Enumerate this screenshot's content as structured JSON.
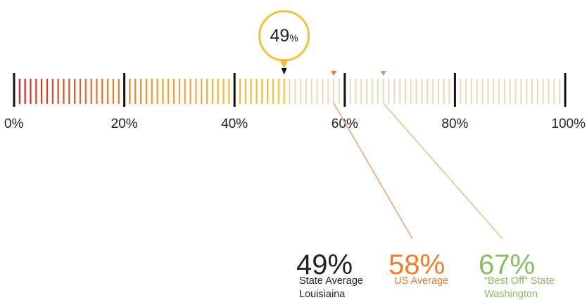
{
  "chart_data": {
    "type": "gauge",
    "title": "",
    "axis": {
      "min": 0,
      "max": 100,
      "unit": "%",
      "tick_values": [
        0,
        20,
        40,
        60,
        80,
        100
      ],
      "tick_labels": [
        "0%",
        "20%",
        "40%",
        "60%",
        "80%",
        "100%"
      ],
      "minor_ticks_per_major": 20
    },
    "current": {
      "value": 49,
      "number": "49",
      "unit": "%"
    },
    "markers": [
      {
        "value": 58,
        "color": "#ef7d2c",
        "line_color": "#f4a57f",
        "value_label": "58%",
        "caption_lines": [
          "US Average"
        ]
      },
      {
        "value": 67,
        "color": "#86bd62",
        "line_color": "#bcd98e",
        "value_label": "67%",
        "caption_lines": [
          "“Best Off” State",
          "Washington"
        ]
      }
    ],
    "current_summary": {
      "value_label": "49%",
      "color": "#222222",
      "caption_lines": [
        "State Average",
        "Louisiaina"
      ]
    },
    "colors": {
      "gradient": [
        "#d6211f",
        "#e4612a",
        "#f0962f",
        "#f2b43c",
        "#f4c235"
      ],
      "inactive_bar": "#e8dcc0",
      "major_tick": "#111111",
      "bubble_border": "#f2c03f",
      "bubble_fill": "#ffffff",
      "current_pointer": "#111111"
    }
  }
}
